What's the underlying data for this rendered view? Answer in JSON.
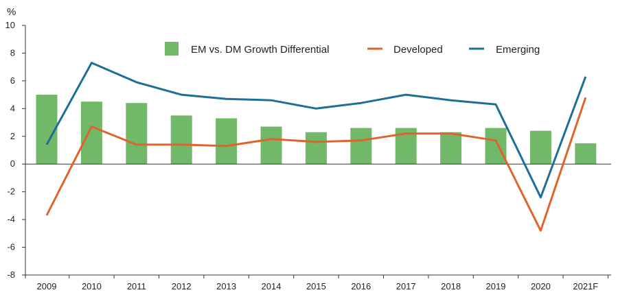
{
  "chart_data": {
    "type": "bar",
    "unit_label": "%",
    "categories": [
      "2009",
      "2010",
      "2011",
      "2012",
      "2013",
      "2014",
      "2015",
      "2016",
      "2017",
      "2018",
      "2019",
      "2020",
      "2021F"
    ],
    "ylim": [
      -8,
      10
    ],
    "yticks": [
      "10",
      "8",
      "6",
      "4",
      "2",
      "0",
      "-2",
      "-4",
      "-6",
      "-8"
    ],
    "ytick_values": [
      10,
      8,
      6,
      4,
      2,
      0,
      -2,
      -4,
      -6,
      -8
    ],
    "grid": false,
    "legend_position": "top",
    "series": [
      {
        "name": "EM vs. DM Growth Differential",
        "type": "bar",
        "color": "#71b868",
        "values": [
          5.0,
          4.5,
          4.4,
          3.5,
          3.3,
          2.7,
          2.3,
          2.6,
          2.6,
          2.3,
          2.6,
          2.4,
          1.5
        ]
      },
      {
        "name": "Developed",
        "type": "line",
        "color": "#e0632d",
        "values": [
          -3.7,
          2.7,
          1.4,
          1.4,
          1.3,
          1.8,
          1.6,
          1.7,
          2.2,
          2.2,
          1.7,
          -4.8,
          4.8
        ]
      },
      {
        "name": "Emerging",
        "type": "line",
        "color": "#1c6f96",
        "values": [
          1.4,
          7.3,
          5.9,
          5.0,
          4.7,
          4.6,
          4.0,
          4.4,
          5.0,
          4.6,
          4.3,
          -2.4,
          6.3
        ]
      }
    ]
  }
}
